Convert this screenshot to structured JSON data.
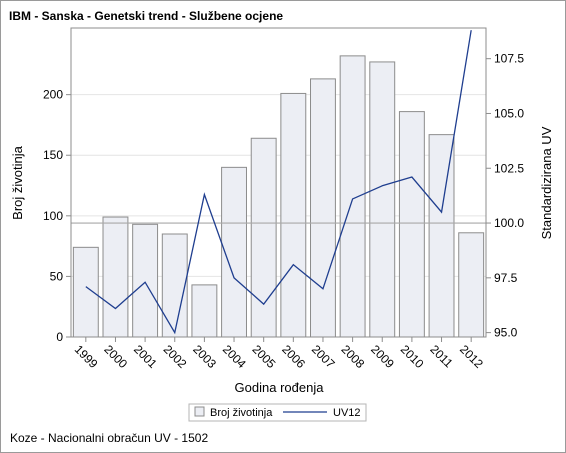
{
  "header": {
    "title": "IBM - Sanska - Genetski trend - Službene ocjene"
  },
  "footer": {
    "note": "Koze - Nacionalni obračun UV - 1502"
  },
  "colors": {
    "bar_fill": "#eceef4",
    "bar_stroke": "#8c8c8c",
    "line": "#1f3e8f",
    "grid": "#e4e4e4",
    "reference_line": "#a8a8a8",
    "axis": "#8c8c8c"
  },
  "chart_data": {
    "type": "bar",
    "xlabel": "Godina rođenja",
    "ylabel": "Broj životinja",
    "y2label": "Standardizirana UV",
    "categories": [
      "1999",
      "2000",
      "2001",
      "2002",
      "2003",
      "2004",
      "2005",
      "2006",
      "2007",
      "2008",
      "2009",
      "2010",
      "2011",
      "2012"
    ],
    "series": [
      {
        "name": "Broj životinja",
        "type": "bar",
        "axis": "left",
        "values": [
          74,
          99,
          93,
          85,
          43,
          140,
          164,
          201,
          213,
          232,
          227,
          186,
          167,
          86
        ]
      },
      {
        "name": "UV12",
        "type": "line",
        "axis": "right",
        "values": [
          97.1,
          96.1,
          97.3,
          95.0,
          101.3,
          97.5,
          96.3,
          98.1,
          97.0,
          101.1,
          101.7,
          102.1,
          100.5,
          108.8
        ]
      }
    ],
    "ylim": [
      0,
      255
    ],
    "yticks": [
      0,
      50,
      100,
      150,
      200
    ],
    "y2lim": [
      94.8,
      108.9
    ],
    "y2ticks": [
      "95.0",
      "97.5",
      "100.0",
      "102.5",
      "105.0",
      "107.5"
    ],
    "y2_reference": 100.0,
    "grid": true,
    "legend": "bottom"
  }
}
